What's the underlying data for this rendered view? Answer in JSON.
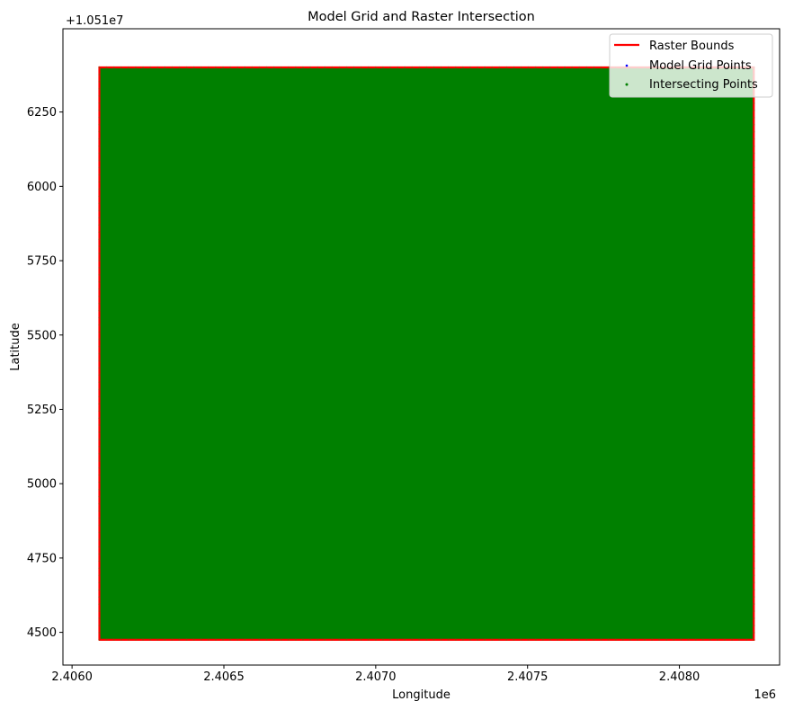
{
  "chart_data": {
    "type": "scatter",
    "title": "Model Grid and Raster Intersection",
    "xlabel": "Longitude",
    "ylabel": "Latitude",
    "x_offset_text": "1e6",
    "y_offset_text": "+1.051e7",
    "x_ticks": [
      2.406,
      2.4065,
      2.407,
      2.4075,
      2.408
    ],
    "x_tick_labels": [
      "2.4060",
      "2.4065",
      "2.4070",
      "2.4075",
      "2.4080"
    ],
    "y_ticks": [
      4500,
      4750,
      5000,
      5250,
      5500,
      5750,
      6000,
      6250
    ],
    "y_tick_labels": [
      "4500",
      "4750",
      "5000",
      "5250",
      "5500",
      "5750",
      "6000",
      "6250"
    ],
    "xlim": [
      2.40597,
      2.40833
    ],
    "ylim": [
      4390,
      6530
    ],
    "grid": false,
    "legend_position": "upper right",
    "series": [
      {
        "name": "Raster Bounds",
        "kind": "line",
        "color": "#ff0000",
        "x": [
          2.40609,
          2.408245,
          2.408245,
          2.40609,
          2.40609
        ],
        "y": [
          4475,
          4475,
          6400,
          6400,
          4475
        ]
      },
      {
        "name": "Model Grid Points",
        "kind": "scatter",
        "color": "#0000ff",
        "x_range": [
          2.40609,
          2.408245
        ],
        "y_range": [
          4475,
          6400
        ]
      },
      {
        "name": "Intersecting Points",
        "kind": "scatter",
        "color": "#008000",
        "x_range": [
          2.40609,
          2.408245
        ],
        "y_range": [
          4475,
          6400
        ]
      }
    ]
  }
}
